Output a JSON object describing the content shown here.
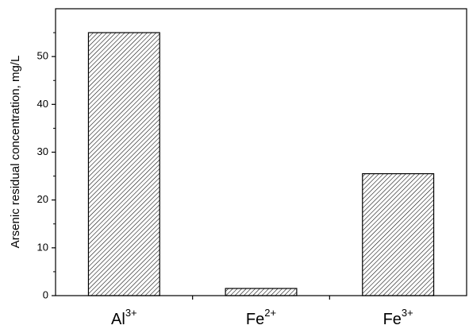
{
  "chart_data": {
    "type": "bar",
    "categories": [
      {
        "base": "Al",
        "sup": "3+"
      },
      {
        "base": "Fe",
        "sup": "2+"
      },
      {
        "base": "Fe",
        "sup": "3+"
      }
    ],
    "values": [
      55.0,
      1.5,
      25.5
    ],
    "title": "",
    "xlabel": "",
    "ylabel": "Arsenic residual concentration, mg/L",
    "ylim": [
      0,
      60
    ],
    "yticks": [
      0,
      10,
      20,
      30,
      40,
      50
    ],
    "grid": false,
    "legend": "none",
    "bar_fill": "hatched",
    "colors": {
      "bar_stroke": "#000000",
      "hatch": "#000000",
      "axis": "#000000",
      "background": "#ffffff"
    }
  }
}
